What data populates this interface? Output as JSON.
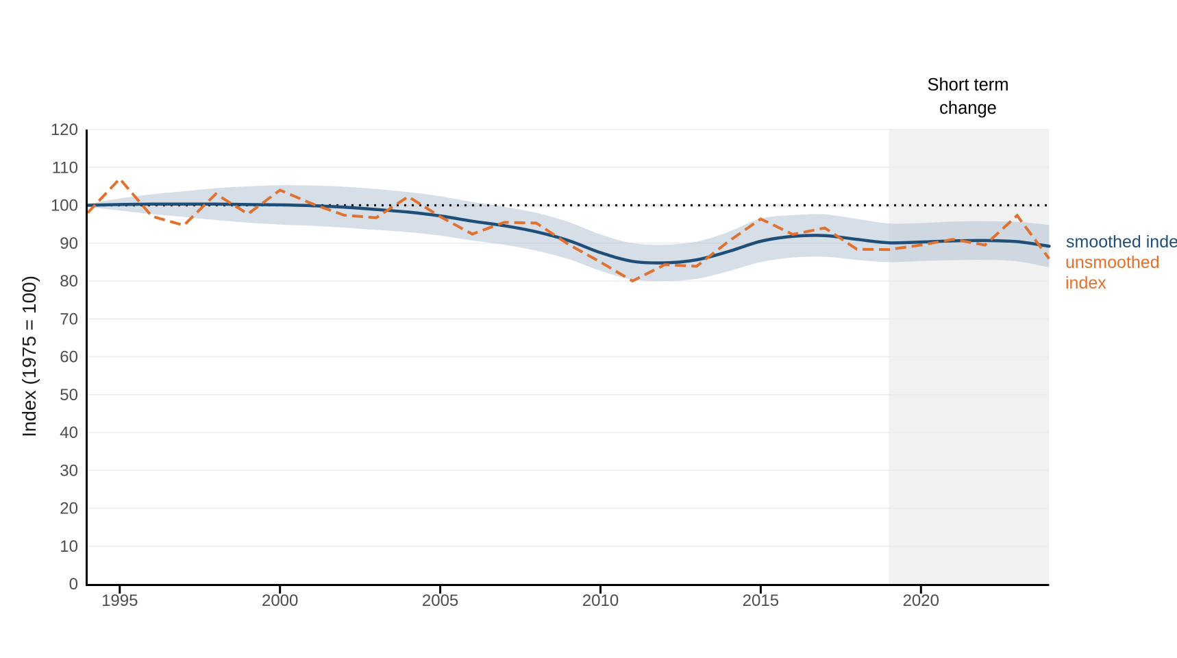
{
  "y_axis": {
    "label": "Index (1975 = 100)",
    "ticks": [
      0,
      10,
      20,
      30,
      40,
      50,
      60,
      70,
      80,
      90,
      100,
      110,
      120
    ]
  },
  "x_axis": {
    "ticks": [
      1995,
      2000,
      2005,
      2010,
      2015,
      2020
    ]
  },
  "annotation": {
    "line1": "Short term",
    "line2": "change"
  },
  "legend": {
    "smoothed_label": "smoothed index",
    "unsmoothed_label_line1": "unsmoothed",
    "unsmoothed_label_line2": "index"
  },
  "colors": {
    "smoothed_line": "#1f4e79",
    "unsmoothed_line": "#e0712e",
    "band_fill": "rgba(174,192,210,0.5)",
    "region_fill": "#f1f1f1",
    "gridline": "#ececec",
    "reference_dotted": "#111111",
    "axis": "#000000",
    "tick_text": "#4d4d4d"
  },
  "chart_data": {
    "type": "line",
    "title": "",
    "xlabel": "",
    "ylabel": "Index (1975 = 100)",
    "x_range": [
      1994,
      2024
    ],
    "y_range": [
      0,
      120
    ],
    "grid": "horizontal",
    "legend_position": "right-outside",
    "x": [
      1994,
      1995,
      1996,
      1997,
      1998,
      1999,
      2000,
      2001,
      2002,
      2003,
      2004,
      2005,
      2006,
      2007,
      2008,
      2009,
      2010,
      2011,
      2012,
      2013,
      2014,
      2015,
      2016,
      2017,
      2018,
      2019,
      2020,
      2021,
      2022,
      2023,
      2024
    ],
    "series": [
      {
        "name": "smoothed index",
        "style": "solid",
        "color": "#1f4e79",
        "values": [
          100.0,
          100.2,
          100.3,
          100.3,
          100.3,
          100.2,
          100.1,
          99.9,
          99.5,
          98.9,
          98.2,
          97.2,
          95.8,
          94.6,
          93.0,
          90.7,
          87.5,
          85.2,
          84.8,
          85.6,
          87.8,
          90.5,
          91.8,
          92.0,
          91.0,
          90.1,
          90.3,
          90.6,
          90.7,
          90.4,
          89.2
        ]
      },
      {
        "name": "unsmoothed index",
        "style": "dashed",
        "color": "#e0712e",
        "values": [
          98.0,
          107.0,
          97.1,
          94.7,
          103.0,
          97.7,
          104.0,
          100.4,
          97.4,
          96.7,
          102.3,
          97.0,
          92.4,
          95.5,
          95.3,
          89.7,
          85.0,
          80.0,
          84.3,
          83.9,
          90.5,
          96.4,
          92.3,
          94.0,
          88.4,
          88.3,
          89.5,
          91.0,
          89.5,
          97.3,
          85.9
        ]
      }
    ],
    "band": {
      "name": "confidence band",
      "color": "rgba(174,192,210,0.5)",
      "upper": [
        100.4,
        101.8,
        102.9,
        103.7,
        104.5,
        105.0,
        105.3,
        105.2,
        104.9,
        104.3,
        103.5,
        102.4,
        100.9,
        99.6,
        98.0,
        95.6,
        92.3,
        90.0,
        89.6,
        90.4,
        93.0,
        96.5,
        97.4,
        97.6,
        96.4,
        95.2,
        95.3,
        95.7,
        95.8,
        95.6,
        94.8
      ],
      "lower": [
        99.6,
        98.6,
        97.7,
        96.9,
        96.1,
        95.4,
        94.9,
        94.6,
        94.1,
        93.5,
        92.9,
        92.0,
        90.7,
        89.6,
        88.0,
        85.8,
        82.7,
        80.4,
        80.0,
        80.6,
        82.6,
        85.0,
        86.2,
        86.4,
        85.6,
        85.0,
        85.3,
        85.5,
        85.6,
        85.2,
        83.6
      ]
    },
    "reference_line": {
      "value": 100,
      "style": "dotted",
      "color": "#111111"
    },
    "short_term_region": {
      "x_start": 2019,
      "x_end": 2024,
      "label": "Short term change",
      "color": "#f1f1f1"
    }
  }
}
